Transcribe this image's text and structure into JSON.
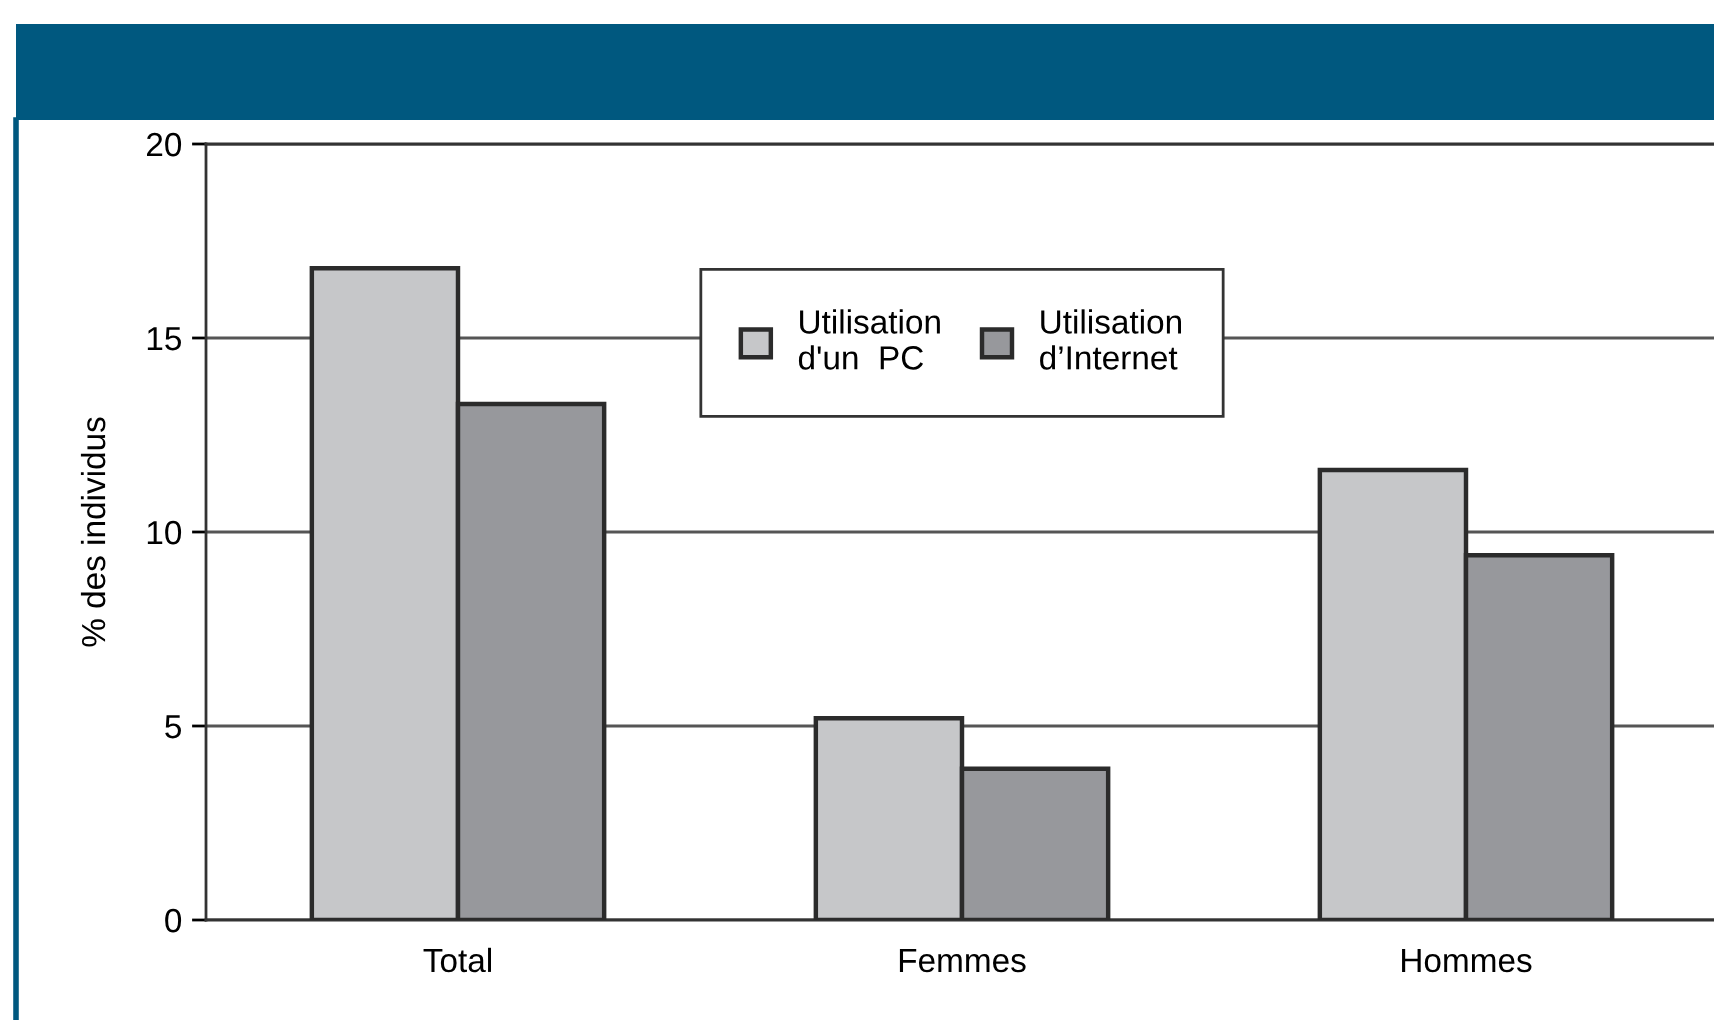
{
  "chart_data": {
    "type": "bar",
    "ylabel": "% des individus",
    "categories": [
      "Total",
      "Femmes",
      "Hommes"
    ],
    "series": [
      {
        "name": "Utilisation\nd'un  PC",
        "color": "#c6c7c9",
        "values": [
          16.8,
          5.2,
          11.6
        ]
      },
      {
        "name": "Utilisation\nd’Internet",
        "color": "#97989c",
        "values": [
          13.3,
          3.9,
          9.4
        ]
      }
    ],
    "ylim": [
      0,
      20
    ],
    "yticks": [
      0,
      5,
      10,
      15,
      20
    ],
    "grid": "y",
    "legend": "top"
  }
}
